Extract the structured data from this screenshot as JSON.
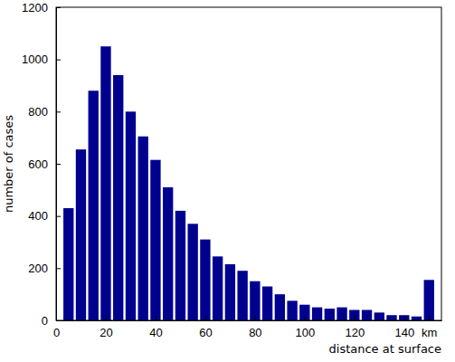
{
  "chart_data": {
    "type": "histogram",
    "x_label": "distance at surface",
    "y_label": "number of cases",
    "bins": [
      2.5,
      7.5,
      12.5,
      17.5,
      22.5,
      27.5,
      32.5,
      37.5,
      42.5,
      47.5,
      52.5,
      57.5,
      62.5,
      67.5,
      72.5,
      77.5,
      82.5,
      87.5,
      92.5,
      97.5,
      102.5,
      107.5,
      112.5,
      117.5,
      122.5,
      127.5,
      132.5,
      137.5,
      142.5,
      147.5,
      152.5
    ],
    "values": [
      430,
      655,
      880,
      1050,
      940,
      800,
      705,
      615,
      510,
      420,
      370,
      310,
      245,
      215,
      190,
      150,
      130,
      100,
      75,
      60,
      50,
      45,
      50,
      40,
      40,
      30,
      20,
      20,
      15,
      155
    ],
    "color": "#00008f",
    "xlim": [
      0,
      155
    ],
    "xticks": [
      0,
      20,
      40,
      60,
      80,
      100,
      120,
      140,
      {
        "value": 150,
        "label": "km"
      }
    ],
    "ylim": [
      0,
      1200
    ],
    "yticks": [
      0,
      200,
      400,
      600,
      800,
      1000,
      1200
    ],
    "grid": false
  }
}
